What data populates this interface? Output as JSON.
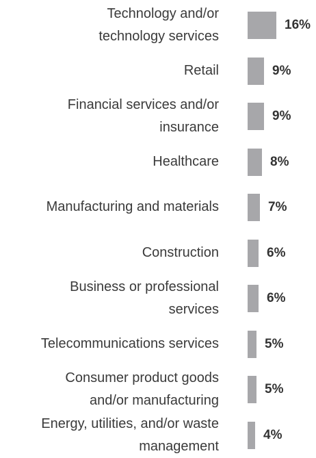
{
  "colors": {
    "bar": "#a7a7aa",
    "label": "#3a3a3a",
    "value": "#333333"
  },
  "chart_data": {
    "type": "bar",
    "orientation": "horizontal",
    "title": "",
    "xlabel": "",
    "ylabel": "",
    "grid": false,
    "legend": "none",
    "xlim": [
      0,
      16
    ],
    "categories": [
      "Technology and/or\ntechnology services",
      "Retail",
      "Financial services and/or\ninsurance",
      "Healthcare",
      "Manufacturing and materials",
      "Construction",
      "Business or professional\nservices",
      "Telecommunications services",
      "Consumer product goods\nand/or manufacturing",
      "Energy, utilities, and/or waste\nmanagement"
    ],
    "values": [
      16,
      9,
      9,
      8,
      7,
      6,
      6,
      5,
      5,
      4
    ],
    "value_labels": [
      "16%",
      "9%",
      "9%",
      "8%",
      "7%",
      "6%",
      "6%",
      "5%",
      "5%",
      "4%"
    ]
  }
}
